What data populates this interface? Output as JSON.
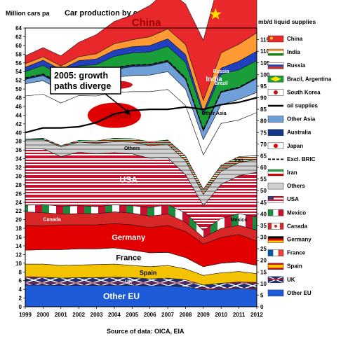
{
  "chart_data": {
    "type": "area",
    "title": "Car production  by country/region",
    "ylabel_left": "Million cars pa",
    "ylabel_right": "mb/d liquid supplies",
    "source": "Source of data: OICA, EIA",
    "annotation": "2005: growth\npaths diverge",
    "x": [
      "1999",
      "2000",
      "2001",
      "2002",
      "2003",
      "2004",
      "2005",
      "2006",
      "2007",
      "2008",
      "2009",
      "2010",
      "2011",
      "2012"
    ],
    "ylim_left": [
      0,
      64
    ],
    "yticks_left": [
      0,
      2,
      4,
      6,
      8,
      10,
      12,
      14,
      16,
      18,
      20,
      22,
      24,
      26,
      28,
      30,
      32,
      34,
      36,
      38,
      40,
      42,
      44,
      46,
      48,
      50,
      52,
      54,
      56,
      58,
      60,
      62,
      64
    ],
    "ylim_right": [
      0,
      120
    ],
    "yticks_right": [
      0,
      5,
      10,
      15,
      20,
      25,
      30,
      35,
      40,
      45,
      50,
      55,
      60,
      65,
      70,
      75,
      80,
      85,
      90,
      95,
      100,
      105,
      110,
      115
    ],
    "stack_order_bottom_to_top": [
      "Other EU",
      "UK",
      "Spain",
      "France",
      "Germany",
      "Canada",
      "Mexico",
      "USA",
      "Others",
      "Iran",
      "Japan",
      "South Korea",
      "Other Asia",
      "Australia",
      "Brazil, Argentina",
      "Russia",
      "India",
      "China"
    ],
    "series": [
      {
        "name": "Other EU",
        "color": "#1e5bd8",
        "values": [
          5.0,
          5.0,
          4.9,
          4.9,
          4.9,
          4.9,
          4.9,
          4.8,
          4.8,
          4.6,
          3.9,
          4.0,
          4.2,
          4.0
        ]
      },
      {
        "name": "UK",
        "color": "#1b2f6e",
        "values": [
          1.9,
          1.8,
          1.7,
          1.8,
          1.8,
          1.9,
          1.8,
          1.6,
          1.8,
          1.6,
          1.1,
          1.4,
          1.5,
          1.6
        ]
      },
      {
        "name": "Spain",
        "color": "#f3c200",
        "values": [
          2.9,
          3.0,
          2.9,
          2.9,
          3.0,
          3.0,
          2.8,
          2.8,
          2.9,
          2.5,
          2.2,
          2.4,
          2.4,
          2.0
        ]
      },
      {
        "name": "France",
        "color": "#ffffff",
        "values": [
          3.2,
          3.3,
          3.6,
          3.7,
          3.6,
          3.7,
          3.5,
          3.2,
          3.0,
          2.6,
          2.0,
          2.2,
          2.2,
          1.9
        ]
      },
      {
        "name": "Germany",
        "color": "#e20000",
        "values": [
          5.7,
          5.5,
          5.7,
          5.5,
          5.5,
          5.6,
          5.8,
          5.8,
          6.2,
          6.0,
          5.2,
          5.9,
          6.3,
          5.6
        ]
      },
      {
        "name": "Canada",
        "color": "#d92626",
        "values": [
          3.1,
          3.0,
          2.5,
          2.6,
          2.6,
          2.7,
          2.7,
          2.6,
          2.6,
          2.1,
          1.5,
          2.1,
          2.1,
          2.5
        ]
      },
      {
        "name": "Mexico",
        "color": "#1e8a3e",
        "values": [
          1.5,
          1.9,
          1.8,
          1.8,
          1.6,
          1.6,
          1.7,
          2.0,
          2.1,
          2.2,
          1.6,
          2.3,
          2.7,
          3.0
        ]
      },
      {
        "name": "USA",
        "color": "#c8102e",
        "values": [
          13.0,
          12.8,
          11.4,
          12.3,
          12.1,
          12.0,
          11.9,
          11.3,
          10.8,
          8.7,
          5.7,
          7.8,
          8.7,
          10.3
        ]
      },
      {
        "name": "Others",
        "color": "#b0b0b0",
        "values": [
          2.0,
          2.1,
          2.2,
          2.3,
          2.4,
          2.5,
          2.7,
          2.9,
          3.1,
          3.2,
          2.6,
          3.0,
          3.0,
          2.9
        ]
      },
      {
        "name": "Iran",
        "color": "#239f40",
        "values": [
          0.2,
          0.3,
          0.3,
          0.4,
          0.6,
          0.8,
          0.8,
          0.9,
          1.0,
          1.1,
          1.2,
          1.4,
          1.4,
          0.9
        ]
      },
      {
        "name": "Japan",
        "color": "#ffffff",
        "values": [
          9.9,
          10.1,
          9.8,
          10.3,
          10.3,
          10.5,
          10.8,
          11.5,
          11.6,
          11.6,
          7.9,
          9.6,
          8.4,
          9.9
        ]
      },
      {
        "name": "South Korea",
        "color": "#ffffff",
        "values": [
          2.8,
          3.1,
          2.9,
          3.1,
          3.2,
          3.5,
          3.7,
          3.8,
          4.1,
          3.8,
          3.5,
          4.3,
          4.7,
          4.6
        ]
      },
      {
        "name": "Other Asia",
        "color": "#6f9fd8",
        "values": [
          1.0,
          1.2,
          1.2,
          1.4,
          1.6,
          1.8,
          2.0,
          2.1,
          2.2,
          2.2,
          2.0,
          2.8,
          2.6,
          3.2
        ]
      },
      {
        "name": "Australia",
        "color": "#123a8a",
        "values": [
          0.3,
          0.3,
          0.3,
          0.3,
          0.4,
          0.4,
          0.4,
          0.3,
          0.3,
          0.3,
          0.2,
          0.2,
          0.2,
          0.2
        ]
      },
      {
        "name": "Brazil, Argentina",
        "color": "#1a9e3a",
        "values": [
          1.5,
          2.0,
          2.0,
          2.0,
          2.0,
          2.6,
          2.8,
          2.9,
          3.3,
          3.6,
          3.5,
          4.0,
          4.0,
          3.9
        ]
      },
      {
        "name": "Russia",
        "color": "#2040c0",
        "values": [
          1.0,
          1.2,
          1.3,
          1.2,
          1.3,
          1.4,
          1.4,
          1.5,
          1.7,
          1.8,
          0.7,
          1.4,
          2.0,
          2.2
        ]
      },
      {
        "name": "India",
        "color": "#ff9933",
        "values": [
          0.8,
          0.8,
          0.8,
          0.9,
          1.2,
          1.5,
          1.6,
          2.0,
          2.3,
          2.3,
          2.6,
          3.5,
          3.9,
          4.2
        ]
      },
      {
        "name": "China",
        "color": "#e8282a",
        "values": [
          1.8,
          2.1,
          2.3,
          3.3,
          4.4,
          5.1,
          5.7,
          7.2,
          8.9,
          9.3,
          13.8,
          18.3,
          18.4,
          19.3
        ]
      }
    ],
    "oil_supplies_mbd": [
      75.0,
      77.0,
      77.0,
      77.5,
      79.3,
      83.0,
      84.5,
      85.0,
      85.0,
      86.0,
      85.0,
      87.0,
      88.0,
      90.0
    ],
    "legend": [
      {
        "name": "China",
        "flag": "china"
      },
      {
        "name": "India",
        "flag": "india"
      },
      {
        "name": "Russia",
        "flag": "russia"
      },
      {
        "name": "Brazil, Argentina",
        "flag": "brazil"
      },
      {
        "name": "South Korea",
        "flag": "korea"
      },
      {
        "name": "oil supplies",
        "flag": "oil-line"
      },
      {
        "name": "Other Asia",
        "flag": "other-asia"
      },
      {
        "name": "Australia",
        "flag": "australia"
      },
      {
        "name": "Japan",
        "flag": "japan"
      },
      {
        "name": "Excl. BRIC",
        "flag": "dashed-line"
      },
      {
        "name": "Iran",
        "flag": "iran"
      },
      {
        "name": "Others",
        "flag": "others"
      },
      {
        "name": "USA",
        "flag": "usa"
      },
      {
        "name": "Mexico",
        "flag": "mexico"
      },
      {
        "name": "Canada",
        "flag": "canada"
      },
      {
        "name": "Germany",
        "flag": "germany"
      },
      {
        "name": "France",
        "flag": "france"
      },
      {
        "name": "Spain",
        "flag": "spain"
      },
      {
        "name": "UK",
        "flag": "uk"
      },
      {
        "name": "Other EU",
        "flag": "other-eu"
      }
    ],
    "area_labels": [
      {
        "series": "China",
        "text": "China",
        "color": "#a00000"
      },
      {
        "series": "India",
        "text": "India",
        "color": "#ffffff"
      },
      {
        "series": "Russia",
        "text": "Russia",
        "color": "#ffffff"
      },
      {
        "series": "Brazil, Argentina",
        "text": "Brazil",
        "color": "#ffffff"
      },
      {
        "series": "Other Asia",
        "text": "Other Asia",
        "color": "#000000"
      },
      {
        "series": "South Korea",
        "text": "South Korea",
        "color": "#ffffff"
      },
      {
        "series": "Japan",
        "text": "Japan",
        "color": "#a00000"
      },
      {
        "series": "Others",
        "text": "Others",
        "color": "#000000"
      },
      {
        "series": "Iran",
        "text": "Iran",
        "color": "#000000"
      },
      {
        "series": "USA",
        "text": "USA",
        "color": "#ffffff"
      },
      {
        "series": "Canada",
        "text": "Canada",
        "color": "#ffffff"
      },
      {
        "series": "Mexico",
        "text": "Mexico",
        "color": "#000000"
      },
      {
        "series": "Germany",
        "text": "Germany",
        "color": "#ffffff"
      },
      {
        "series": "France",
        "text": "France",
        "color": "#000000"
      },
      {
        "series": "Spain",
        "text": "Spain",
        "color": "#000000"
      },
      {
        "series": "UK",
        "text": "UK",
        "color": "#ffffff"
      },
      {
        "series": "Other EU",
        "text": "Other EU",
        "color": "#ffffff"
      }
    ]
  }
}
